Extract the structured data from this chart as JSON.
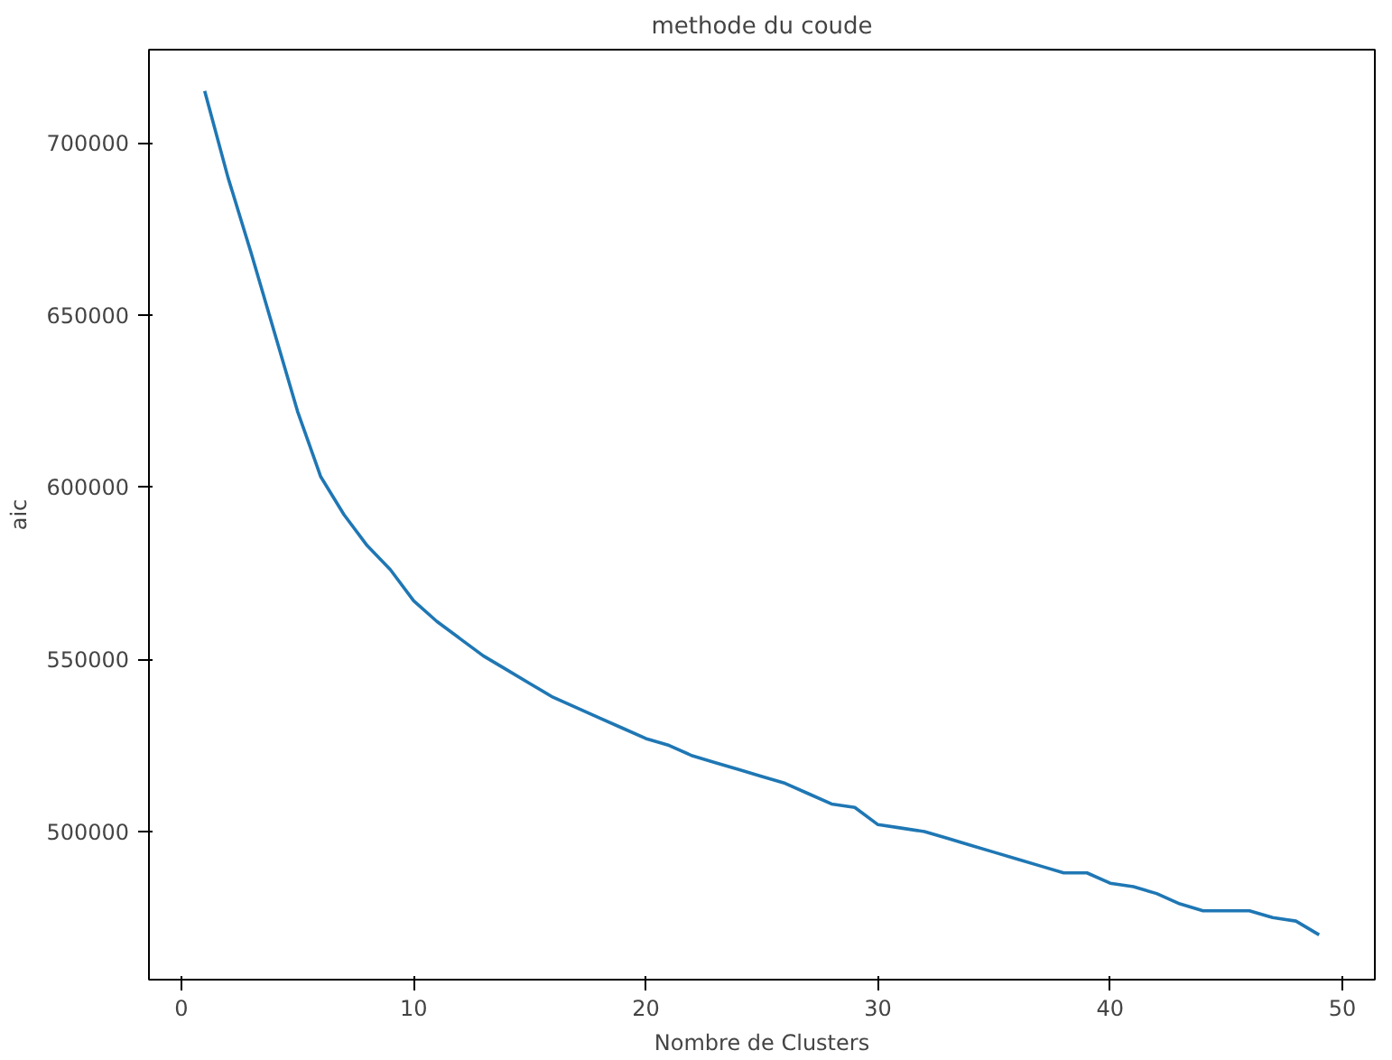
{
  "chart_data": {
    "type": "line",
    "title": "methode du coude",
    "xlabel": "Nombre de Clusters",
    "ylabel": "aic",
    "x": [
      1,
      2,
      3,
      4,
      5,
      6,
      7,
      8,
      9,
      10,
      11,
      12,
      13,
      14,
      15,
      16,
      17,
      18,
      19,
      20,
      21,
      22,
      23,
      24,
      25,
      26,
      27,
      28,
      29,
      30,
      31,
      32,
      33,
      34,
      35,
      36,
      37,
      38,
      39,
      40,
      41,
      42,
      43,
      44,
      45,
      46,
      47,
      48,
      49
    ],
    "series": [
      {
        "color": "#1f77b4",
        "values": [
          715000,
          690000,
          668000,
          645000,
          622000,
          603000,
          592000,
          583000,
          576000,
          567000,
          561000,
          556000,
          551000,
          547000,
          543000,
          539000,
          536000,
          533000,
          530000,
          527000,
          525000,
          522000,
          520000,
          518000,
          516000,
          514000,
          511000,
          508000,
          507000,
          502000,
          501000,
          500000,
          498000,
          496000,
          494000,
          492000,
          490000,
          488000,
          488000,
          485000,
          484000,
          482000,
          479000,
          477000,
          477000,
          477000,
          475000,
          474000,
          470000
        ]
      }
    ],
    "xlim": [
      -1.4,
      51.4
    ],
    "ylim": [
      457000,
      727000
    ],
    "xticks": [
      0,
      10,
      20,
      30,
      40,
      50
    ],
    "yticks": [
      500000,
      550000,
      600000,
      650000,
      700000
    ],
    "grid": false
  }
}
